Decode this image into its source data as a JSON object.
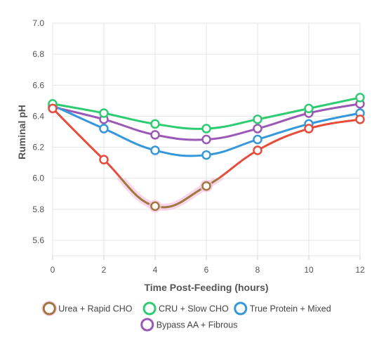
{
  "chart_data": {
    "type": "line",
    "xlabel": "Time Post-Feeding (hours)",
    "ylabel": "Ruminal pH",
    "x": [
      0,
      2,
      4,
      6,
      8,
      10,
      12
    ],
    "xlim": [
      0,
      12
    ],
    "ylim": [
      5.5,
      7.0
    ],
    "x_ticks": [
      "0",
      "2",
      "4",
      "6",
      "8",
      "10",
      "12"
    ],
    "y_ticks": [
      "5.6",
      "5.8",
      "6.0",
      "6.2",
      "6.4",
      "6.6",
      "6.8",
      "7.0"
    ],
    "y_tick_values": [
      5.6,
      5.8,
      6.0,
      6.2,
      6.4,
      6.6,
      6.8,
      7.0
    ],
    "grid": true,
    "legend_position": "bottom",
    "series": [
      {
        "name": "Urea + Rapid CHO",
        "color": "#e74c3c",
        "below_color": "#a0783c",
        "values": [
          6.45,
          6.12,
          5.82,
          5.95,
          6.18,
          6.32,
          6.38
        ]
      },
      {
        "name": "CRU + Slow CHO",
        "color": "#2ecc71",
        "values": [
          6.48,
          6.42,
          6.35,
          6.32,
          6.38,
          6.45,
          6.52
        ]
      },
      {
        "name": "True Protein + Mixed",
        "color": "#3498db",
        "values": [
          6.47,
          6.32,
          6.18,
          6.15,
          6.25,
          6.35,
          6.42
        ]
      },
      {
        "name": "Bypass AA + Fibrous",
        "color": "#9b59b6",
        "values": [
          6.46,
          6.38,
          6.28,
          6.25,
          6.32,
          6.42,
          6.48
        ]
      }
    ],
    "threshold": 6.0
  }
}
